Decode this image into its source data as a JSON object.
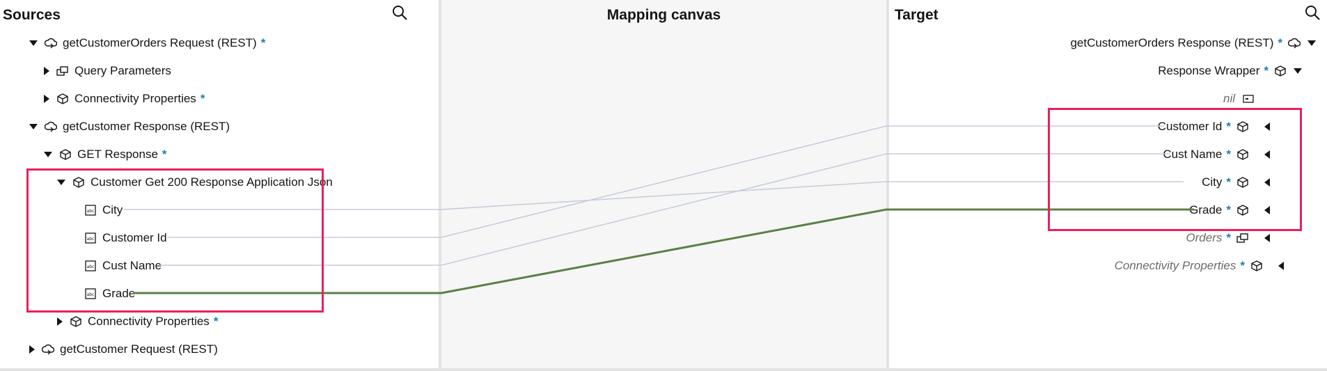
{
  "sources": {
    "title": "Sources",
    "items": [
      {
        "label": "getCustomerOrders Request (REST)",
        "required": "*"
      },
      {
        "label": "Query Parameters",
        "required": ""
      },
      {
        "label": "Connectivity Properties",
        "required": "*"
      },
      {
        "label": "getCustomer Response (REST)",
        "required": ""
      },
      {
        "label": "GET Response",
        "required": "*"
      },
      {
        "label": "Customer Get 200 Response Application Json",
        "required": ""
      },
      {
        "label": "City",
        "required": ""
      },
      {
        "label": "Customer Id",
        "required": ""
      },
      {
        "label": "Cust Name",
        "required": ""
      },
      {
        "label": "Grade",
        "required": ""
      },
      {
        "label": "Connectivity Properties",
        "required": "*"
      },
      {
        "label": "getCustomer Request (REST)",
        "required": ""
      }
    ]
  },
  "canvas": {
    "title": "Mapping canvas"
  },
  "target": {
    "title": "Target",
    "items": [
      {
        "label": "getCustomerOrders Response (REST)",
        "required": "*"
      },
      {
        "label": "Response Wrapper",
        "required": "*"
      },
      {
        "label": "nil",
        "required": ""
      },
      {
        "label": "Customer Id",
        "required": "*"
      },
      {
        "label": "Cust Name",
        "required": "*"
      },
      {
        "label": "City",
        "required": "*"
      },
      {
        "label": "Grade",
        "required": "*"
      },
      {
        "label": "Orders",
        "required": "*"
      },
      {
        "label": "Connectivity Properties",
        "required": "*"
      }
    ]
  },
  "colors": {
    "accent": "#1e7fad",
    "highlight_box": "#eb1f5a",
    "mapping_line": "#c5cbd8",
    "active_mapping_line": "#5b7f45",
    "selected_row": "#e4f1f7"
  }
}
